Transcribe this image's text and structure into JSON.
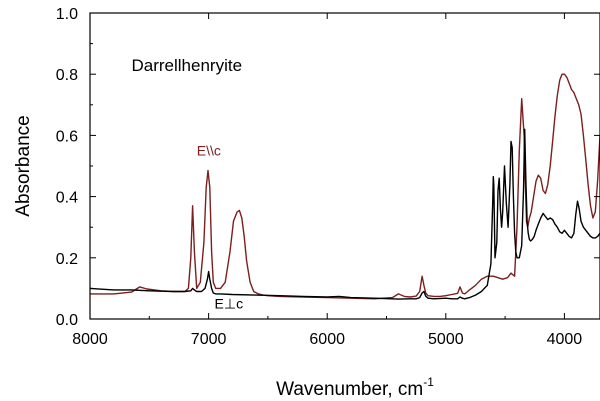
{
  "chart_data": {
    "type": "line",
    "title": "Darrellhenryite",
    "xlabel": "Wavenumber, cm",
    "xlabel_superscript": "-1",
    "ylabel": "Absorbance",
    "xlim": [
      8000,
      3700
    ],
    "ylim": [
      0.0,
      1.0
    ],
    "x_reversed": true,
    "grid": false,
    "x_ticks": [
      8000,
      7000,
      6000,
      5000,
      4000
    ],
    "x_tick_labels": [
      "8000",
      "7000",
      "6000",
      "5000",
      "4000"
    ],
    "y_ticks": [
      0.0,
      0.2,
      0.4,
      0.6,
      0.8,
      1.0
    ],
    "y_tick_labels": [
      "0.0",
      "0.2",
      "0.4",
      "0.6",
      "0.8",
      "1.0"
    ],
    "annotations": [
      {
        "text": "Darrellhenryite",
        "x": 7650,
        "y": 0.81,
        "color": "#000000"
      },
      {
        "text": "E\\\\c",
        "x": 7100,
        "y": 0.535,
        "color": "#7b1f1f"
      },
      {
        "text": "E⊥c",
        "x": 6950,
        "y": 0.035,
        "color": "#000000"
      }
    ],
    "series": [
      {
        "name": "E\\\\c",
        "color": "#7b1f1f",
        "x": [
          8000,
          7800,
          7650,
          7580,
          7520,
          7400,
          7300,
          7200,
          7170,
          7150,
          7135,
          7120,
          7100,
          7070,
          7040,
          7020,
          7005,
          6990,
          6975,
          6960,
          6940,
          6900,
          6860,
          6820,
          6790,
          6760,
          6740,
          6720,
          6700,
          6680,
          6650,
          6620,
          6580,
          6540,
          6500,
          6400,
          6200,
          6000,
          5800,
          5600,
          5450,
          5400,
          5350,
          5300,
          5250,
          5220,
          5200,
          5185,
          5170,
          5150,
          5100,
          5050,
          5000,
          4950,
          4900,
          4880,
          4860,
          4840,
          4800,
          4750,
          4700,
          4650,
          4600,
          4560,
          4520,
          4480,
          4450,
          4420,
          4400,
          4380,
          4360,
          4340,
          4330,
          4320,
          4310,
          4295,
          4280,
          4260,
          4240,
          4220,
          4200,
          4180,
          4160,
          4140,
          4120,
          4100,
          4080,
          4060,
          4040,
          4020,
          4000,
          3980,
          3960,
          3940,
          3920,
          3900,
          3880,
          3860,
          3840,
          3820,
          3800,
          3780,
          3760,
          3740,
          3720,
          3700
        ],
        "y": [
          0.082,
          0.082,
          0.088,
          0.105,
          0.098,
          0.092,
          0.09,
          0.09,
          0.1,
          0.2,
          0.37,
          0.22,
          0.1,
          0.12,
          0.25,
          0.43,
          0.485,
          0.43,
          0.22,
          0.12,
          0.1,
          0.1,
          0.12,
          0.22,
          0.32,
          0.35,
          0.355,
          0.33,
          0.27,
          0.19,
          0.12,
          0.09,
          0.082,
          0.078,
          0.076,
          0.074,
          0.072,
          0.07,
          0.068,
          0.066,
          0.07,
          0.082,
          0.074,
          0.072,
          0.075,
          0.09,
          0.14,
          0.11,
          0.085,
          0.076,
          0.074,
          0.074,
          0.076,
          0.08,
          0.084,
          0.105,
          0.085,
          0.082,
          0.095,
          0.11,
          0.13,
          0.14,
          0.14,
          0.135,
          0.13,
          0.135,
          0.15,
          0.14,
          0.3,
          0.55,
          0.72,
          0.6,
          0.45,
          0.32,
          0.3,
          0.33,
          0.35,
          0.4,
          0.45,
          0.47,
          0.46,
          0.42,
          0.41,
          0.44,
          0.5,
          0.58,
          0.66,
          0.73,
          0.78,
          0.8,
          0.8,
          0.79,
          0.77,
          0.75,
          0.74,
          0.72,
          0.7,
          0.67,
          0.6,
          0.52,
          0.44,
          0.37,
          0.33,
          0.35,
          0.45,
          0.6
        ]
      },
      {
        "name": "E⊥c",
        "color": "#000000",
        "x": [
          8000,
          7800,
          7650,
          7500,
          7300,
          7200,
          7150,
          7135,
          7120,
          7100,
          7060,
          7030,
          7010,
          7000,
          6990,
          6975,
          6960,
          6940,
          6900,
          6800,
          6600,
          6400,
          6200,
          6000,
          5900,
          5800,
          5600,
          5400,
          5300,
          5250,
          5220,
          5200,
          5185,
          5170,
          5150,
          5100,
          5000,
          4950,
          4900,
          4880,
          4860,
          4840,
          4800,
          4750,
          4700,
          4650,
          4620,
          4605,
          4600,
          4595,
          4585,
          4570,
          4560,
          4550,
          4540,
          4530,
          4520,
          4505,
          4490,
          4475,
          4460,
          4450,
          4440,
          4430,
          4420,
          4410,
          4400,
          4380,
          4360,
          4345,
          4335,
          4325,
          4315,
          4305,
          4295,
          4285,
          4270,
          4255,
          4240,
          4220,
          4200,
          4180,
          4160,
          4140,
          4120,
          4100,
          4080,
          4060,
          4040,
          4020,
          4000,
          3980,
          3960,
          3940,
          3920,
          3905,
          3890,
          3875,
          3860,
          3840,
          3820,
          3800,
          3780,
          3760,
          3740,
          3720,
          3700
        ],
        "y": [
          0.1,
          0.095,
          0.095,
          0.092,
          0.09,
          0.09,
          0.092,
          0.1,
          0.095,
          0.09,
          0.09,
          0.1,
          0.13,
          0.155,
          0.13,
          0.1,
          0.085,
          0.082,
          0.082,
          0.08,
          0.078,
          0.076,
          0.074,
          0.072,
          0.074,
          0.07,
          0.068,
          0.065,
          0.066,
          0.066,
          0.07,
          0.085,
          0.09,
          0.075,
          0.068,
          0.066,
          0.068,
          0.066,
          0.066,
          0.072,
          0.068,
          0.066,
          0.07,
          0.078,
          0.09,
          0.11,
          0.18,
          0.38,
          0.465,
          0.44,
          0.2,
          0.25,
          0.42,
          0.46,
          0.36,
          0.3,
          0.35,
          0.5,
          0.38,
          0.3,
          0.44,
          0.58,
          0.56,
          0.4,
          0.28,
          0.22,
          0.2,
          0.2,
          0.24,
          0.42,
          0.62,
          0.45,
          0.32,
          0.28,
          0.26,
          0.255,
          0.26,
          0.27,
          0.29,
          0.31,
          0.33,
          0.345,
          0.335,
          0.325,
          0.33,
          0.325,
          0.31,
          0.3,
          0.285,
          0.28,
          0.29,
          0.28,
          0.27,
          0.265,
          0.28,
          0.34,
          0.385,
          0.36,
          0.32,
          0.3,
          0.29,
          0.28,
          0.27,
          0.265,
          0.265,
          0.27,
          0.28
        ]
      }
    ]
  }
}
